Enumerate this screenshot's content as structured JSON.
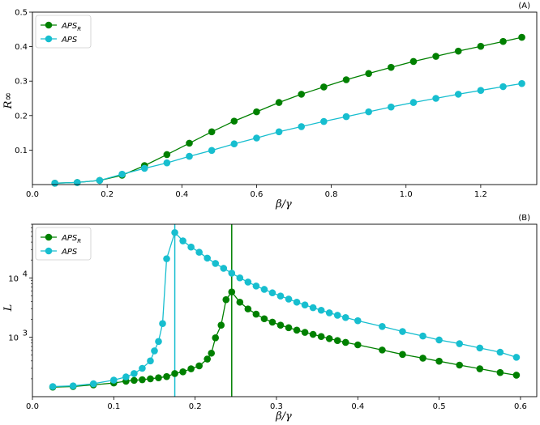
{
  "chart_data": [
    {
      "type": "line",
      "panel_label": "(A)",
      "xlabel": "β/γ",
      "ylabel": "R∞",
      "xlim": [
        0.0,
        1.35
      ],
      "ylim": [
        0.0,
        0.5
      ],
      "xticks": [
        "0.0",
        "0.2",
        "0.4",
        "0.6",
        "0.8",
        "1.0",
        "1.2"
      ],
      "yticks": [
        "0.1",
        "0.2",
        "0.3",
        "0.4",
        "0.5"
      ],
      "legend_position": "top-left",
      "series": [
        {
          "name": "APS_R",
          "color": "#008000",
          "x": [
            0.06,
            0.12,
            0.18,
            0.24,
            0.3,
            0.36,
            0.42,
            0.48,
            0.54,
            0.6,
            0.66,
            0.72,
            0.78,
            0.84,
            0.9,
            0.96,
            1.02,
            1.08,
            1.14,
            1.2,
            1.26,
            1.31
          ],
          "y": [
            0.004,
            0.006,
            0.012,
            0.027,
            0.055,
            0.087,
            0.12,
            0.153,
            0.184,
            0.211,
            0.238,
            0.262,
            0.283,
            0.304,
            0.322,
            0.34,
            0.357,
            0.372,
            0.387,
            0.401,
            0.415,
            0.427
          ]
        },
        {
          "name": "APS",
          "color": "#17becf",
          "x": [
            0.06,
            0.12,
            0.18,
            0.24,
            0.3,
            0.36,
            0.42,
            0.48,
            0.54,
            0.6,
            0.66,
            0.72,
            0.78,
            0.84,
            0.9,
            0.96,
            1.02,
            1.08,
            1.14,
            1.2,
            1.26,
            1.31
          ],
          "y": [
            0.004,
            0.006,
            0.012,
            0.03,
            0.047,
            0.063,
            0.082,
            0.099,
            0.118,
            0.135,
            0.153,
            0.168,
            0.183,
            0.197,
            0.211,
            0.225,
            0.238,
            0.25,
            0.262,
            0.273,
            0.284,
            0.293
          ]
        }
      ]
    },
    {
      "type": "line",
      "panel_label": "(B)",
      "xlabel": "β/γ",
      "ylabel": "L",
      "xscale": "linear",
      "yscale": "log",
      "xlim": [
        0.0,
        0.62
      ],
      "ylim": [
        100,
        80000
      ],
      "xticks": [
        "0.0",
        "0.1",
        "0.2",
        "0.3",
        "0.4",
        "0.5",
        "0.6"
      ],
      "yticks": [
        {
          "value": 1000,
          "base": "10",
          "exp": "3"
        },
        {
          "value": 10000,
          "base": "10",
          "exp": "4"
        }
      ],
      "legend_position": "top-left",
      "vertical_lines": [
        {
          "x": 0.175,
          "color": "#17becf"
        },
        {
          "x": 0.245,
          "color": "#008000"
        }
      ],
      "series": [
        {
          "name": "APS_R",
          "color": "#008000",
          "x": [
            0.025,
            0.05,
            0.075,
            0.1,
            0.115,
            0.125,
            0.135,
            0.145,
            0.155,
            0.165,
            0.175,
            0.185,
            0.195,
            0.205,
            0.215,
            0.22,
            0.225,
            0.232,
            0.238,
            0.245,
            0.255,
            0.265,
            0.275,
            0.285,
            0.295,
            0.305,
            0.315,
            0.325,
            0.335,
            0.345,
            0.355,
            0.365,
            0.375,
            0.385,
            0.4,
            0.43,
            0.455,
            0.48,
            0.5,
            0.525,
            0.55,
            0.575,
            0.595
          ],
          "y": [
            145,
            148,
            158,
            170,
            182,
            188,
            193,
            200,
            208,
            218,
            245,
            262,
            295,
            330,
            430,
            540,
            980,
            1600,
            4300,
            5800,
            3900,
            3000,
            2450,
            2050,
            1800,
            1600,
            1450,
            1320,
            1210,
            1120,
            1030,
            950,
            880,
            820,
            745,
            610,
            515,
            445,
            395,
            340,
            295,
            255,
            230
          ]
        },
        {
          "name": "APS",
          "color": "#17becf",
          "x": [
            0.025,
            0.05,
            0.075,
            0.1,
            0.115,
            0.125,
            0.135,
            0.145,
            0.15,
            0.155,
            0.16,
            0.165,
            0.175,
            0.185,
            0.195,
            0.205,
            0.215,
            0.225,
            0.235,
            0.245,
            0.255,
            0.265,
            0.275,
            0.285,
            0.295,
            0.305,
            0.315,
            0.325,
            0.335,
            0.345,
            0.355,
            0.365,
            0.375,
            0.385,
            0.4,
            0.43,
            0.455,
            0.48,
            0.5,
            0.525,
            0.55,
            0.575,
            0.595
          ],
          "y": [
            148,
            152,
            165,
            190,
            215,
            245,
            300,
            400,
            590,
            850,
            1700,
            21000,
            58000,
            42000,
            33000,
            27000,
            21500,
            17500,
            14500,
            12000,
            10000,
            8500,
            7300,
            6400,
            5600,
            4950,
            4400,
            3900,
            3500,
            3150,
            2850,
            2580,
            2350,
            2150,
            1900,
            1520,
            1250,
            1050,
            900,
            780,
            660,
            560,
            460
          ]
        }
      ]
    }
  ]
}
